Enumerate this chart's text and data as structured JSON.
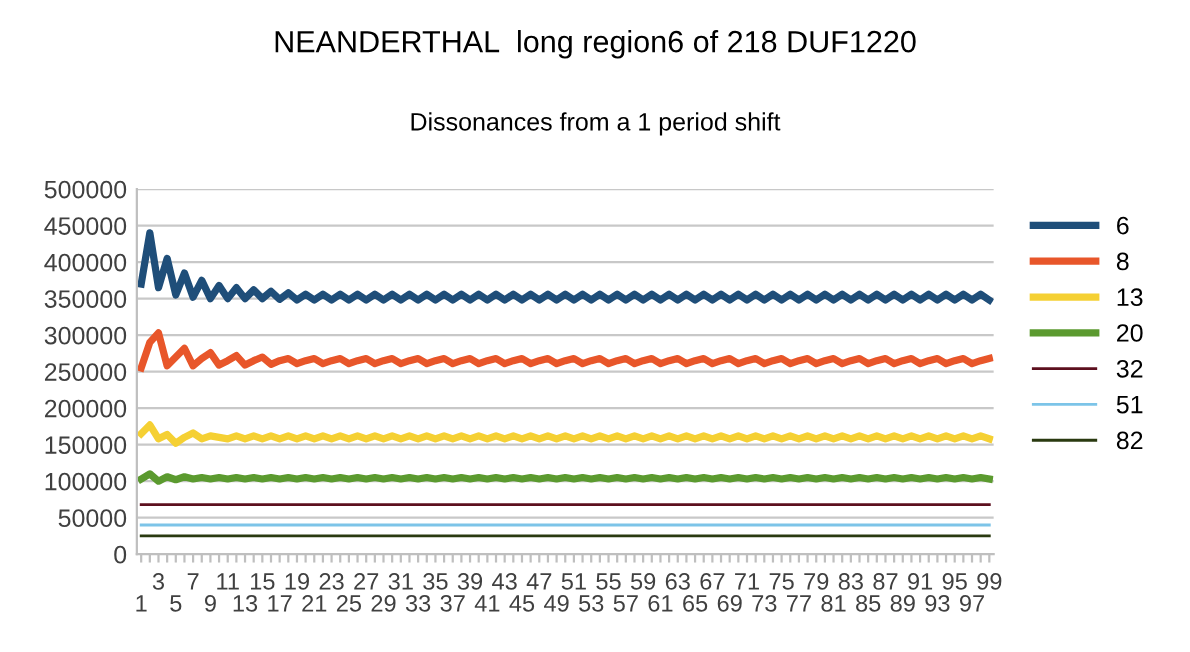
{
  "chart_data": {
    "type": "line",
    "title": "NEANDERTHAL  long region6 of 218 DUF1220",
    "subtitle": "Dissonances from a 1 period shift",
    "categories": [
      "1",
      null,
      "3",
      null,
      "5",
      null,
      "7",
      null,
      "9",
      null,
      "11",
      null,
      "13",
      null,
      "15",
      null,
      "17",
      null,
      "19",
      null,
      "21",
      null,
      "23",
      null,
      "25",
      null,
      "27",
      null,
      "29",
      null,
      "31",
      null,
      "33",
      null,
      "35",
      null,
      "37",
      null,
      "39",
      null,
      "41",
      null,
      "43",
      null,
      "45",
      null,
      "47",
      null,
      "49",
      null,
      "51",
      null,
      "53",
      null,
      "55",
      null,
      "57",
      null,
      "59",
      null,
      "61",
      null,
      "63",
      null,
      "65",
      null,
      "67",
      null,
      "69",
      null,
      "71",
      null,
      "73",
      null,
      "75",
      null,
      "77",
      null,
      "79",
      null,
      "81",
      null,
      "83",
      null,
      "85",
      null,
      "87",
      null,
      "89",
      null,
      "91",
      null,
      "93",
      null,
      "95",
      null,
      "97",
      null,
      "99"
    ],
    "series": [
      {
        "name": "6",
        "color": "#1f4e79",
        "values": [
          370000,
          440000,
          365000,
          405000,
          355000,
          385000,
          352000,
          375000,
          350000,
          368000,
          350000,
          365000,
          350000,
          362000,
          350000,
          360000,
          349000,
          358000,
          348000,
          356000,
          348000,
          356000,
          348000,
          356000,
          348000,
          356000,
          348000,
          356000,
          348000,
          356000,
          348000,
          356000,
          348000,
          356000,
          348000,
          356000,
          348000,
          356000,
          348000,
          356000,
          348000,
          356000,
          348000,
          356000,
          348000,
          356000,
          348000,
          356000,
          348000,
          356000,
          348000,
          356000,
          348000,
          356000,
          348000,
          356000,
          348000,
          356000,
          348000,
          356000,
          348000,
          356000,
          348000,
          356000,
          348000,
          356000,
          348000,
          356000,
          348000,
          356000,
          348000,
          356000,
          348000,
          356000,
          348000,
          356000,
          348000,
          356000,
          348000,
          356000,
          348000,
          356000,
          348000,
          356000,
          348000,
          356000,
          348000,
          356000,
          348000,
          356000,
          348000,
          356000,
          348000,
          356000,
          348000,
          356000,
          348000,
          356000,
          348000
        ]
      },
      {
        "name": "8",
        "color": "#e8562a",
        "values": [
          255000,
          290000,
          303000,
          258000,
          270000,
          282000,
          258000,
          268000,
          276000,
          259000,
          265000,
          272000,
          259000,
          265000,
          270000,
          260000,
          265000,
          268000,
          261000,
          265000,
          268000,
          261000,
          265000,
          268000,
          261000,
          265000,
          268000,
          261000,
          265000,
          268000,
          261000,
          265000,
          268000,
          261000,
          265000,
          268000,
          261000,
          265000,
          268000,
          261000,
          265000,
          268000,
          261000,
          265000,
          268000,
          261000,
          265000,
          268000,
          261000,
          265000,
          268000,
          261000,
          265000,
          268000,
          261000,
          265000,
          268000,
          261000,
          265000,
          268000,
          261000,
          265000,
          268000,
          261000,
          265000,
          268000,
          261000,
          265000,
          268000,
          261000,
          265000,
          268000,
          261000,
          265000,
          268000,
          261000,
          265000,
          268000,
          261000,
          265000,
          268000,
          261000,
          265000,
          268000,
          261000,
          265000,
          268000,
          261000,
          265000,
          268000,
          261000,
          265000,
          268000,
          261000,
          265000,
          268000,
          261000,
          265000,
          268000
        ]
      },
      {
        "name": "13",
        "color": "#f5d033",
        "values": [
          165000,
          177000,
          158000,
          164000,
          152000,
          160000,
          166000,
          158000,
          162000,
          160000,
          158000,
          162000,
          158000,
          162000,
          158000,
          162000,
          158000,
          162000,
          158000,
          162000,
          158000,
          162000,
          158000,
          162000,
          158000,
          162000,
          158000,
          162000,
          158000,
          162000,
          158000,
          162000,
          158000,
          162000,
          158000,
          162000,
          158000,
          162000,
          158000,
          162000,
          158000,
          162000,
          158000,
          162000,
          158000,
          162000,
          158000,
          162000,
          158000,
          162000,
          158000,
          162000,
          158000,
          162000,
          158000,
          162000,
          158000,
          162000,
          158000,
          162000,
          158000,
          162000,
          158000,
          162000,
          158000,
          162000,
          158000,
          162000,
          158000,
          162000,
          158000,
          162000,
          158000,
          162000,
          158000,
          162000,
          158000,
          162000,
          158000,
          162000,
          158000,
          162000,
          158000,
          162000,
          158000,
          162000,
          158000,
          162000,
          158000,
          162000,
          158000,
          162000,
          158000,
          162000,
          158000,
          162000,
          158000,
          162000,
          158000
        ]
      },
      {
        "name": "20",
        "color": "#5b9a2f",
        "values": [
          103000,
          110000,
          100000,
          106000,
          102000,
          106000,
          103000,
          105000,
          103000,
          105000,
          103000,
          105000,
          103000,
          105000,
          103000,
          105000,
          103000,
          105000,
          103000,
          105000,
          103000,
          105000,
          103000,
          105000,
          103000,
          105000,
          103000,
          105000,
          103000,
          105000,
          103000,
          105000,
          103000,
          105000,
          103000,
          105000,
          103000,
          105000,
          103000,
          105000,
          103000,
          105000,
          103000,
          105000,
          103000,
          105000,
          103000,
          105000,
          103000,
          105000,
          103000,
          105000,
          103000,
          105000,
          103000,
          105000,
          103000,
          105000,
          103000,
          105000,
          103000,
          105000,
          103000,
          105000,
          103000,
          105000,
          103000,
          105000,
          103000,
          105000,
          103000,
          105000,
          103000,
          105000,
          103000,
          105000,
          103000,
          105000,
          103000,
          105000,
          103000,
          105000,
          103000,
          105000,
          103000,
          105000,
          103000,
          105000,
          103000,
          105000,
          103000,
          105000,
          103000,
          105000,
          103000,
          105000,
          103000,
          105000,
          103000
        ]
      },
      {
        "name": "32",
        "color": "#5c0f1e",
        "values": [
          68000,
          68000,
          68000,
          68000,
          68000,
          68000,
          68000,
          68000,
          68000,
          68000,
          68000,
          68000,
          68000,
          68000,
          68000,
          68000,
          68000,
          68000,
          68000,
          68000,
          68000,
          68000,
          68000,
          68000,
          68000,
          68000,
          68000,
          68000,
          68000,
          68000,
          68000,
          68000,
          68000,
          68000,
          68000,
          68000,
          68000,
          68000,
          68000,
          68000,
          68000,
          68000,
          68000,
          68000,
          68000,
          68000,
          68000,
          68000,
          68000,
          68000,
          68000,
          68000,
          68000,
          68000,
          68000,
          68000,
          68000,
          68000,
          68000,
          68000,
          68000,
          68000,
          68000,
          68000,
          68000,
          68000,
          68000,
          68000,
          68000,
          68000,
          68000,
          68000,
          68000,
          68000,
          68000,
          68000,
          68000,
          68000,
          68000,
          68000,
          68000,
          68000,
          68000,
          68000,
          68000,
          68000,
          68000,
          68000,
          68000,
          68000,
          68000,
          68000,
          68000,
          68000,
          68000,
          68000,
          68000,
          68000,
          68000
        ]
      },
      {
        "name": "51",
        "color": "#7cc4e8",
        "values": [
          40000,
          40000,
          40000,
          40000,
          40000,
          40000,
          40000,
          40000,
          40000,
          40000,
          40000,
          40000,
          40000,
          40000,
          40000,
          40000,
          40000,
          40000,
          40000,
          40000,
          40000,
          40000,
          40000,
          40000,
          40000,
          40000,
          40000,
          40000,
          40000,
          40000,
          40000,
          40000,
          40000,
          40000,
          40000,
          40000,
          40000,
          40000,
          40000,
          40000,
          40000,
          40000,
          40000,
          40000,
          40000,
          40000,
          40000,
          40000,
          40000,
          40000,
          40000,
          40000,
          40000,
          40000,
          40000,
          40000,
          40000,
          40000,
          40000,
          40000,
          40000,
          40000,
          40000,
          40000,
          40000,
          40000,
          40000,
          40000,
          40000,
          40000,
          40000,
          40000,
          40000,
          40000,
          40000,
          40000,
          40000,
          40000,
          40000,
          40000,
          40000,
          40000,
          40000,
          40000,
          40000,
          40000,
          40000,
          40000,
          40000,
          40000,
          40000,
          40000,
          40000,
          40000,
          40000,
          40000,
          40000,
          40000,
          40000
        ]
      },
      {
        "name": "82",
        "color": "#2a3a10",
        "values": [
          25000,
          25000,
          25000,
          25000,
          25000,
          25000,
          25000,
          25000,
          25000,
          25000,
          25000,
          25000,
          25000,
          25000,
          25000,
          25000,
          25000,
          25000,
          25000,
          25000,
          25000,
          25000,
          25000,
          25000,
          25000,
          25000,
          25000,
          25000,
          25000,
          25000,
          25000,
          25000,
          25000,
          25000,
          25000,
          25000,
          25000,
          25000,
          25000,
          25000,
          25000,
          25000,
          25000,
          25000,
          25000,
          25000,
          25000,
          25000,
          25000,
          25000,
          25000,
          25000,
          25000,
          25000,
          25000,
          25000,
          25000,
          25000,
          25000,
          25000,
          25000,
          25000,
          25000,
          25000,
          25000,
          25000,
          25000,
          25000,
          25000,
          25000,
          25000,
          25000,
          25000,
          25000,
          25000,
          25000,
          25000,
          25000,
          25000,
          25000,
          25000,
          25000,
          25000,
          25000,
          25000,
          25000,
          25000,
          25000,
          25000,
          25000,
          25000,
          25000,
          25000,
          25000,
          25000,
          25000,
          25000,
          25000,
          25000
        ]
      }
    ],
    "ylim": [
      0,
      500000
    ],
    "yticks": [
      0,
      50000,
      100000,
      150000,
      200000,
      250000,
      300000,
      350000,
      400000,
      450000,
      500000
    ],
    "grid": "y",
    "legend": "right",
    "marker": "none",
    "line_style": "solid"
  }
}
